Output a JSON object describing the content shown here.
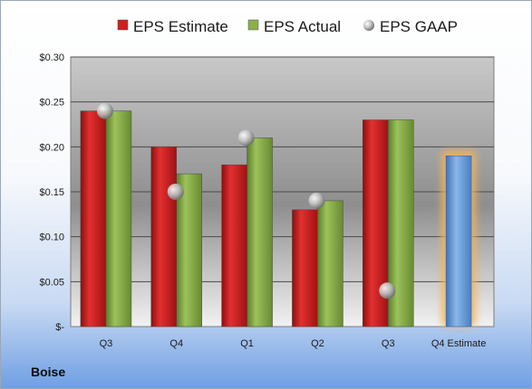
{
  "company": "Boise",
  "chart_data": {
    "type": "bar",
    "categories": [
      "Q3",
      "Q4",
      "Q1",
      "Q2",
      "Q3",
      "Q4 Estimate"
    ],
    "series": [
      {
        "name": "EPS Estimate",
        "color": "#d21e1e",
        "values": [
          0.24,
          0.2,
          0.18,
          0.13,
          0.23,
          null
        ]
      },
      {
        "name": "EPS Actual",
        "color": "#8bb04c",
        "values": [
          0.24,
          0.17,
          0.21,
          0.14,
          0.23,
          null
        ]
      },
      {
        "name": "EPS GAAP",
        "color": "#c8c8c8",
        "marker": "sphere",
        "values": [
          0.24,
          0.15,
          0.21,
          0.14,
          0.04,
          null
        ]
      }
    ],
    "estimate_bar": {
      "category": "Q4 Estimate",
      "value": 0.19,
      "color": "#6fa0dc",
      "glow": "#f5b25a"
    },
    "y_ticks": [
      {
        "value": 0.0,
        "label": "$-"
      },
      {
        "value": 0.05,
        "label": "$0.05"
      },
      {
        "value": 0.1,
        "label": "$0.10"
      },
      {
        "value": 0.15,
        "label": "$0.15"
      },
      {
        "value": 0.2,
        "label": "$0.20"
      },
      {
        "value": 0.25,
        "label": "$0.25"
      },
      {
        "value": 0.3,
        "label": "$0.30"
      }
    ],
    "ylim": [
      0,
      0.3
    ],
    "grid": true,
    "legend_position": "top"
  }
}
